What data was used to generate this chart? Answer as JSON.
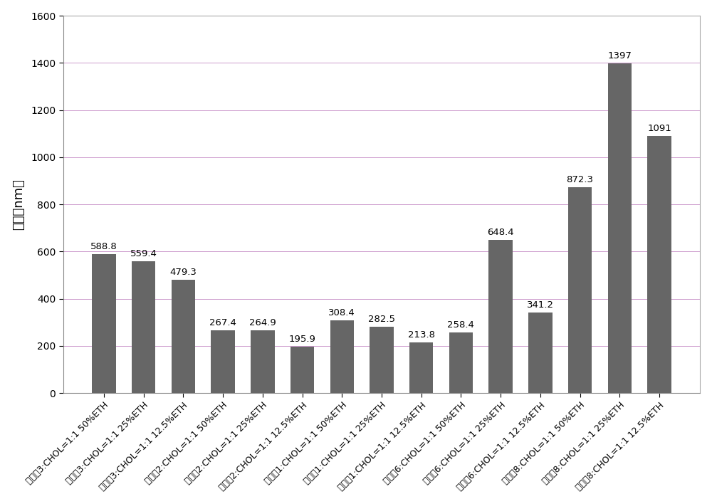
{
  "categories": [
    "化合物3:CHOL=1:1 50%ETH",
    "化合物3:CHOL=1:1 25%ETH",
    "化合物3:CHOL=1:1 12.5%ETH",
    "化合物2:CHOL=1:1 50%ETH",
    "化合物2:CHOL=1:1 25%ETH",
    "化合物2:CHOL=1:1 12.5%ETH",
    "化合物1:CHOL=1:1 50%ETH",
    "化合物1:CHOL=1:1 25%ETH",
    "化合物1:CHOL=1:1 12.5%ETH",
    "化合物6:CHOL=1:1 50%ETH",
    "化合物6:CHOL=1:1 25%ETH",
    "化合物6:CHOL=1:1 12.5%ETH",
    "化合物8:CHOL=1:1 50%ETH",
    "化合物8:CHOL=1:1 25%ETH",
    "化合物8:CHOL=1:1 12.5%ETH"
  ],
  "values": [
    588.8,
    559.4,
    479.3,
    267.4,
    264.9,
    195.9,
    308.4,
    282.5,
    213.8,
    258.4,
    648.4,
    341.2,
    872.3,
    1397,
    1091
  ],
  "bar_color": "#666666",
  "ylabel": "粒径（nm）",
  "ylim": [
    0,
    1600
  ],
  "yticks": [
    0,
    200,
    400,
    600,
    800,
    1000,
    1200,
    1400,
    1600
  ],
  "grid_color": "#cc99cc",
  "background_color": "#ffffff",
  "label_fontsize": 9.5,
  "ylabel_fontsize": 13,
  "tick_label_fontsize": 9,
  "ytick_fontsize": 10
}
